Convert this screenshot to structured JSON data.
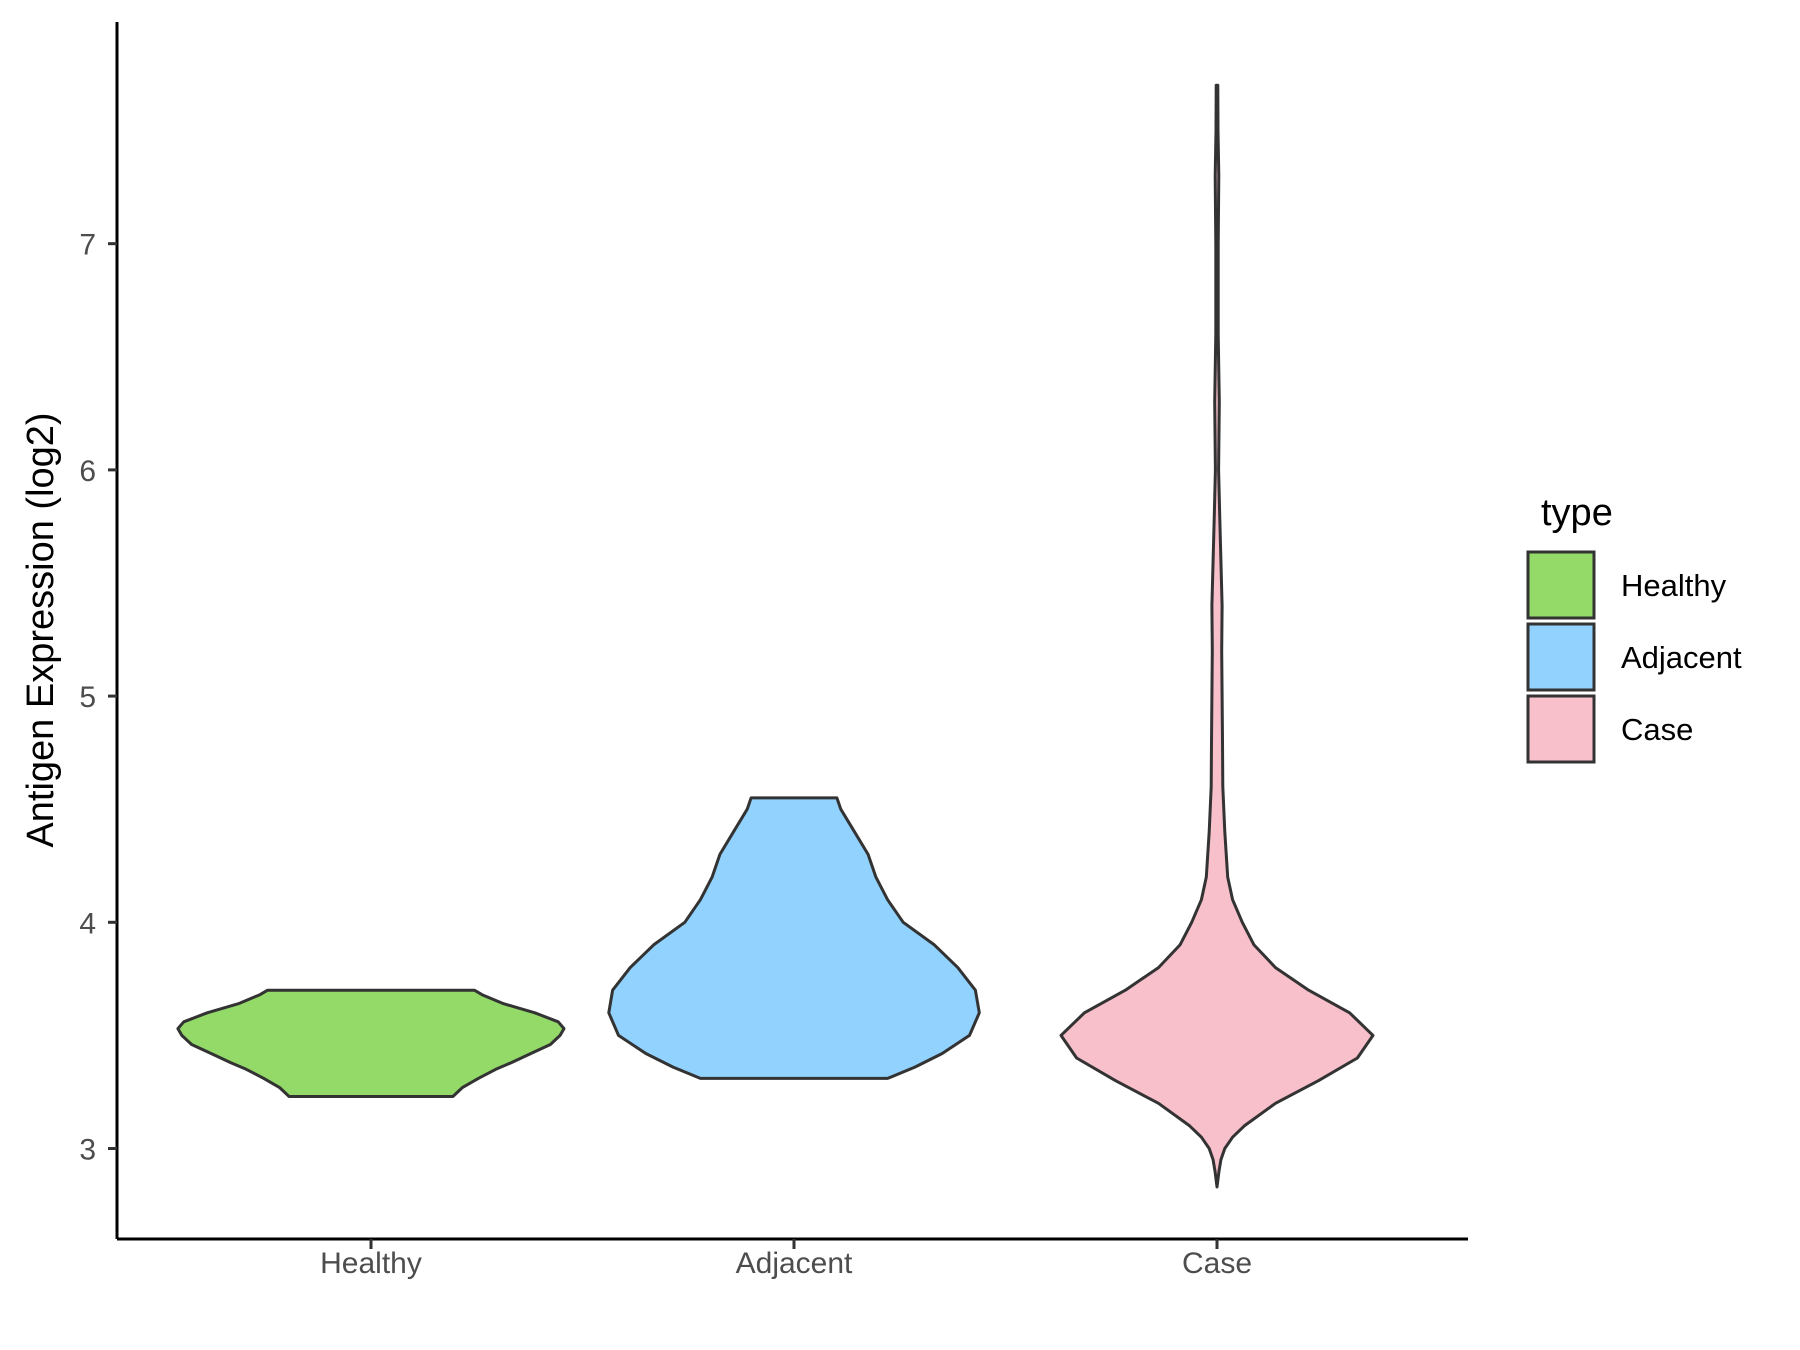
{
  "chart_data": {
    "type": "violin",
    "xlabel": "",
    "ylabel": "Antigen Expression (log2)",
    "categories": [
      "Healthy",
      "Adjacent",
      "Case"
    ],
    "y_ticks": [
      "3",
      "4",
      "5",
      "6",
      "7"
    ],
    "ylim": [
      2.6,
      7.98
    ],
    "grid": false,
    "legend": {
      "title": "type",
      "position": "right",
      "entries": [
        {
          "label": "Healthy",
          "color": "#93DA69"
        },
        {
          "label": "Adjacent",
          "color": "#92D2FF"
        },
        {
          "label": "Case",
          "color": "#F7C0CB"
        }
      ]
    },
    "series": [
      {
        "category": "Healthy",
        "color": "#93DA69",
        "min": 3.23,
        "max": 3.7,
        "density": [
          [
            3.23,
            0.42
          ],
          [
            3.27,
            0.47
          ],
          [
            3.31,
            0.55
          ],
          [
            3.35,
            0.64
          ],
          [
            3.38,
            0.72
          ],
          [
            3.42,
            0.82
          ],
          [
            3.46,
            0.92
          ],
          [
            3.5,
            0.97
          ],
          [
            3.53,
            0.99
          ],
          [
            3.56,
            0.96
          ],
          [
            3.6,
            0.84
          ],
          [
            3.64,
            0.68
          ],
          [
            3.68,
            0.57
          ],
          [
            3.7,
            0.53
          ]
        ]
      },
      {
        "category": "Adjacent",
        "color": "#92D2FF",
        "min": 3.31,
        "max": 4.55,
        "density": [
          [
            3.31,
            0.48
          ],
          [
            3.36,
            0.62
          ],
          [
            3.42,
            0.76
          ],
          [
            3.5,
            0.9
          ],
          [
            3.6,
            0.95
          ],
          [
            3.7,
            0.93
          ],
          [
            3.8,
            0.84
          ],
          [
            3.9,
            0.72
          ],
          [
            4.0,
            0.56
          ],
          [
            4.1,
            0.48
          ],
          [
            4.2,
            0.42
          ],
          [
            4.3,
            0.38
          ],
          [
            4.4,
            0.31
          ],
          [
            4.5,
            0.24
          ],
          [
            4.55,
            0.22
          ]
        ]
      },
      {
        "category": "Case",
        "color": "#F7C0CB",
        "min": 2.83,
        "max": 7.7,
        "density": [
          [
            2.83,
            0.0
          ],
          [
            2.9,
            0.01
          ],
          [
            2.95,
            0.02
          ],
          [
            3.0,
            0.04
          ],
          [
            3.05,
            0.08
          ],
          [
            3.1,
            0.14
          ],
          [
            3.2,
            0.3
          ],
          [
            3.3,
            0.52
          ],
          [
            3.4,
            0.72
          ],
          [
            3.5,
            0.8
          ],
          [
            3.6,
            0.68
          ],
          [
            3.7,
            0.47
          ],
          [
            3.8,
            0.3
          ],
          [
            3.9,
            0.19
          ],
          [
            4.0,
            0.13
          ],
          [
            4.1,
            0.08
          ],
          [
            4.2,
            0.055
          ],
          [
            4.4,
            0.04
          ],
          [
            4.6,
            0.03
          ],
          [
            4.8,
            0.028
          ],
          [
            5.0,
            0.026
          ],
          [
            5.2,
            0.024
          ],
          [
            5.4,
            0.026
          ],
          [
            5.6,
            0.02
          ],
          [
            5.8,
            0.014
          ],
          [
            6.0,
            0.008
          ],
          [
            6.3,
            0.012
          ],
          [
            6.6,
            0.006
          ],
          [
            7.0,
            0.006
          ],
          [
            7.3,
            0.009
          ],
          [
            7.5,
            0.005
          ],
          [
            7.7,
            0.004
          ]
        ]
      }
    ]
  }
}
